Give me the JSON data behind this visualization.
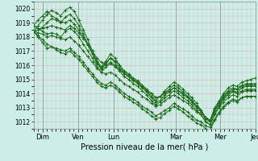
{
  "xlabel": "Pression niveau de la mer( hPa )",
  "ylim": [
    1011.5,
    1020.5
  ],
  "xlim": [
    0,
    150
  ],
  "yticks": [
    1012,
    1013,
    1014,
    1015,
    1016,
    1017,
    1018,
    1019,
    1020
  ],
  "xtick_positions": [
    6,
    30,
    54,
    96,
    126,
    150
  ],
  "xtick_labels": [
    "Dim",
    "Ven",
    "Lun",
    "Mar",
    "Mer",
    "Jeu"
  ],
  "vline_positions": [
    6,
    30,
    54,
    96,
    126,
    150
  ],
  "bg_color": "#cceee8",
  "grid_color_minor": "#e8b0b0",
  "grid_color_major": "#e8b0b0",
  "line_color": "#1a6b1a",
  "marker": "+",
  "markersize": 2.5,
  "linewidth": 0.7,
  "series": [
    [
      1018.4,
      1018.8,
      1019.2,
      1019.6,
      1019.9,
      1019.7,
      1019.5,
      1019.9,
      1020.1,
      1019.8,
      1019.2,
      1018.5,
      1017.8,
      1017.0,
      1016.3,
      1015.9,
      1016.3,
      1016.8,
      1016.5,
      1016.0,
      1015.5,
      1015.3,
      1015.0,
      1014.8,
      1014.5,
      1014.2,
      1013.8,
      1013.5,
      1013.8,
      1014.2,
      1014.5,
      1014.8,
      1014.6,
      1014.3,
      1014.0,
      1013.7,
      1013.3,
      1012.8,
      1012.3,
      1012.1,
      1013.0,
      1013.5,
      1014.0,
      1014.4,
      1014.6,
      1014.5,
      1014.8,
      1014.9,
      1015.0,
      1015.1
    ],
    [
      1018.4,
      1018.5,
      1018.6,
      1018.7,
      1018.8,
      1018.7,
      1018.6,
      1018.5,
      1018.8,
      1018.6,
      1018.3,
      1017.9,
      1017.5,
      1017.0,
      1016.5,
      1016.2,
      1016.0,
      1016.2,
      1016.0,
      1015.7,
      1015.4,
      1015.2,
      1015.0,
      1014.8,
      1014.5,
      1014.2,
      1014.0,
      1013.7,
      1013.8,
      1014.0,
      1014.2,
      1014.4,
      1014.2,
      1014.0,
      1013.8,
      1013.5,
      1013.1,
      1012.8,
      1012.2,
      1012.0,
      1012.8,
      1013.2,
      1013.7,
      1014.0,
      1014.2,
      1014.1,
      1014.4,
      1014.5,
      1014.5,
      1014.5
    ],
    [
      1018.4,
      1018.3,
      1018.2,
      1018.0,
      1018.1,
      1018.0,
      1017.9,
      1017.8,
      1018.0,
      1017.7,
      1017.4,
      1017.0,
      1016.6,
      1016.2,
      1015.8,
      1015.5,
      1015.4,
      1015.5,
      1015.3,
      1015.0,
      1014.7,
      1014.5,
      1014.3,
      1014.1,
      1013.8,
      1013.6,
      1013.3,
      1013.1,
      1013.2,
      1013.5,
      1013.7,
      1013.9,
      1013.7,
      1013.5,
      1013.3,
      1013.0,
      1012.7,
      1012.5,
      1012.0,
      1011.8,
      1012.5,
      1013.0,
      1013.4,
      1013.7,
      1013.9,
      1013.8,
      1014.1,
      1014.2,
      1014.2,
      1014.2
    ],
    [
      1018.4,
      1018.1,
      1017.8,
      1017.5,
      1017.3,
      1017.2,
      1017.1,
      1017.0,
      1017.2,
      1016.9,
      1016.6,
      1016.2,
      1015.8,
      1015.4,
      1015.0,
      1014.7,
      1014.6,
      1014.8,
      1014.6,
      1014.3,
      1014.0,
      1013.8,
      1013.6,
      1013.4,
      1013.1,
      1012.9,
      1012.7,
      1012.4,
      1012.6,
      1012.8,
      1013.0,
      1013.3,
      1013.1,
      1012.9,
      1012.7,
      1012.4,
      1012.1,
      1012.0,
      1011.7,
      1011.6,
      1012.2,
      1012.7,
      1013.1,
      1013.4,
      1013.6,
      1013.5,
      1013.7,
      1013.8,
      1013.8,
      1013.8
    ],
    [
      1018.4,
      1018.5,
      1018.7,
      1019.0,
      1019.3,
      1019.2,
      1019.0,
      1019.4,
      1019.6,
      1019.3,
      1018.8,
      1018.2,
      1017.5,
      1016.8,
      1016.1,
      1015.7,
      1016.1,
      1016.5,
      1016.2,
      1015.8,
      1015.4,
      1015.2,
      1014.9,
      1014.7,
      1014.4,
      1014.1,
      1013.7,
      1013.4,
      1013.5,
      1013.9,
      1014.1,
      1014.4,
      1014.2,
      1013.9,
      1013.7,
      1013.4,
      1013.0,
      1012.7,
      1012.2,
      1012.0,
      1012.8,
      1013.3,
      1013.8,
      1014.1,
      1014.3,
      1014.3,
      1014.5,
      1014.6,
      1014.6,
      1014.6
    ],
    [
      1018.8,
      1018.6,
      1018.4,
      1018.2,
      1018.3,
      1018.2,
      1018.0,
      1018.4,
      1018.6,
      1018.4,
      1018.0,
      1017.5,
      1017.0,
      1016.5,
      1015.9,
      1015.5,
      1015.9,
      1016.1,
      1015.9,
      1015.6,
      1015.2,
      1015.0,
      1014.7,
      1014.5,
      1014.2,
      1013.9,
      1013.5,
      1013.2,
      1013.4,
      1013.7,
      1013.9,
      1014.2,
      1014.0,
      1013.7,
      1013.5,
      1013.2,
      1012.8,
      1012.5,
      1012.0,
      1011.8,
      1012.6,
      1013.1,
      1013.6,
      1013.9,
      1014.1,
      1014.0,
      1014.2,
      1014.3,
      1014.3,
      1014.3
    ],
    [
      1018.8,
      1019.2,
      1019.5,
      1019.8,
      1019.5,
      1019.3,
      1019.1,
      1019.0,
      1019.2,
      1018.9,
      1018.5,
      1018.0,
      1017.4,
      1016.8,
      1016.2,
      1015.8,
      1016.2,
      1016.5,
      1016.3,
      1016.0,
      1015.6,
      1015.4,
      1015.1,
      1014.9,
      1014.6,
      1014.3,
      1014.0,
      1013.7,
      1013.8,
      1014.1,
      1014.3,
      1014.6,
      1014.4,
      1014.1,
      1013.8,
      1013.5,
      1013.1,
      1012.8,
      1012.3,
      1012.1,
      1012.9,
      1013.4,
      1013.9,
      1014.2,
      1014.4,
      1014.3,
      1014.6,
      1014.7,
      1014.7,
      1014.7
    ],
    [
      1018.4,
      1018.0,
      1017.6,
      1017.2,
      1017.3,
      1017.1,
      1016.9,
      1016.8,
      1017.0,
      1016.7,
      1016.4,
      1016.0,
      1015.6,
      1015.2,
      1014.8,
      1014.5,
      1014.4,
      1014.6,
      1014.4,
      1014.1,
      1013.8,
      1013.6,
      1013.4,
      1013.2,
      1012.9,
      1012.7,
      1012.4,
      1012.2,
      1012.3,
      1012.6,
      1012.8,
      1013.1,
      1012.9,
      1012.7,
      1012.4,
      1012.2,
      1011.9,
      1011.8,
      1011.5,
      1011.4,
      1012.1,
      1012.6,
      1013.0,
      1013.3,
      1013.5,
      1013.4,
      1013.7,
      1013.8,
      1013.8,
      1013.8
    ]
  ]
}
